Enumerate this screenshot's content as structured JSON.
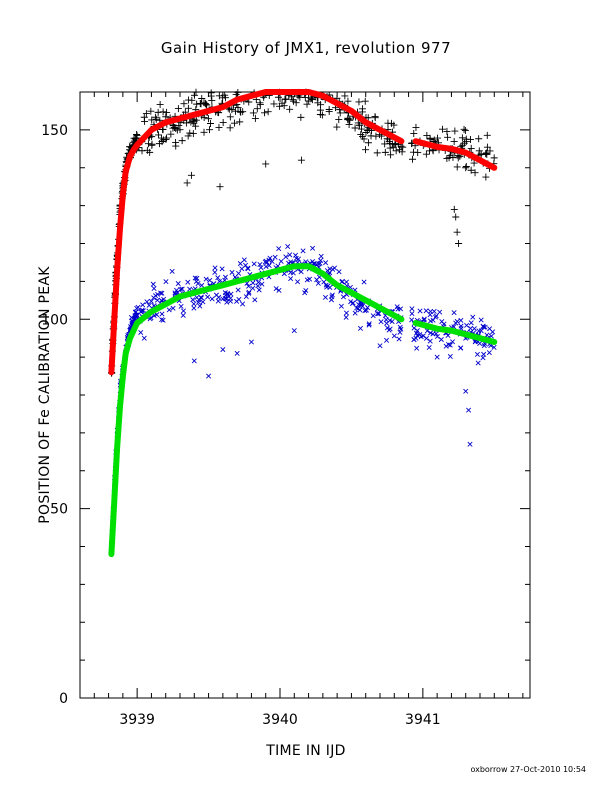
{
  "chart_data": {
    "type": "scatter",
    "title": "Gain History of JMX1, revolution 977",
    "xlabel": "TIME IN IJD",
    "ylabel": "POSITION OF Fe CALIBRATION PEAK",
    "footer": "oxborrow 27-Oct-2010 10:54",
    "xlim": [
      3938.6,
      3941.75
    ],
    "ylim": [
      0,
      160
    ],
    "x_ticks": [
      3939,
      3940,
      3941
    ],
    "x_tick_labels": [
      "3939",
      "3940",
      "3941"
    ],
    "y_ticks": [
      0,
      50,
      100,
      150
    ],
    "y_tick_labels": [
      "0",
      "50",
      "100",
      "150"
    ],
    "grid": false,
    "colors": {
      "upper_points": "#000000",
      "upper_fit": "#ff0000",
      "lower_points": "#0000cc",
      "lower_fit": "#00e000"
    },
    "series": [
      {
        "marker": "plus",
        "color": "#000000",
        "trend_x": [
          3938.82,
          3938.85,
          3938.88,
          3938.92,
          3938.96,
          3939.0,
          3939.1,
          3939.3,
          3939.5,
          3939.7,
          3939.9,
          3940.05,
          3940.2,
          3940.3,
          3940.4,
          3940.5,
          3940.6,
          3940.7,
          3940.8,
          3941.0,
          3941.2,
          3941.4,
          3941.5
        ],
        "trend_y": [
          86,
          110,
          128,
          140,
          145,
          147,
          150,
          153,
          155,
          157,
          160,
          160,
          160,
          159,
          157,
          154,
          151,
          149,
          147,
          146,
          145,
          143,
          141
        ],
        "outliers_x": [
          3939.35,
          3939.38,
          3939.58,
          3939.9,
          3940.15,
          3941.22,
          3941.23,
          3941.24,
          3941.25,
          3941.3,
          3941.35
        ],
        "outliers_y": [
          136,
          138,
          135,
          141,
          142,
          129,
          127,
          123,
          120,
          140,
          143
        ]
      },
      {
        "marker": "line",
        "color": "#ff0000",
        "x": [
          3938.82,
          3938.84,
          3938.86,
          3938.88,
          3938.9,
          3938.92,
          3938.95,
          3938.98,
          3939.0,
          3939.05,
          3939.1,
          3939.2,
          3939.3,
          3939.4,
          3939.5,
          3939.6,
          3939.7,
          3939.8,
          3939.9,
          3940.0,
          3940.1,
          3940.2,
          3940.3,
          3940.4,
          3940.5,
          3940.6,
          3940.7,
          3940.8,
          3940.85
        ],
        "y": [
          86,
          100,
          113,
          124,
          133,
          139,
          143,
          145,
          146,
          148,
          150,
          152,
          153,
          154,
          155,
          156,
          158,
          159,
          160,
          160,
          160,
          160,
          159,
          157,
          155,
          152,
          150,
          148,
          147
        ]
      },
      {
        "marker": "line",
        "color": "#ff0000",
        "x": [
          3940.95,
          3941.0,
          3941.1,
          3941.2,
          3941.3,
          3941.4,
          3941.5
        ],
        "y": [
          147,
          146.5,
          145.5,
          145,
          144,
          142,
          140
        ]
      },
      {
        "marker": "cross",
        "color": "#0000cc",
        "trend_x": [
          3938.82,
          3938.85,
          3938.88,
          3938.92,
          3938.96,
          3939.0,
          3939.1,
          3939.3,
          3939.5,
          3939.7,
          3939.9,
          3940.05,
          3940.2,
          3940.3,
          3940.4,
          3940.5,
          3940.6,
          3940.7,
          3940.8,
          3941.0,
          3941.2,
          3941.4,
          3941.5
        ],
        "trend_y": [
          40,
          62,
          80,
          92,
          98,
          101,
          104,
          106,
          108,
          110,
          112,
          115,
          114,
          112,
          109,
          106,
          103,
          101,
          99,
          98,
          97,
          95,
          94
        ],
        "outliers_x": [
          3939.05,
          3939.4,
          3939.5,
          3939.6,
          3939.7,
          3939.8,
          3940.1,
          3940.7,
          3941.1,
          3941.3,
          3941.32,
          3941.33
        ],
        "outliers_y": [
          95,
          89,
          85,
          92,
          91,
          94,
          97,
          93,
          90,
          81,
          76,
          67
        ]
      },
      {
        "marker": "line",
        "color": "#00e000",
        "x": [
          3938.82,
          3938.84,
          3938.86,
          3938.88,
          3938.9,
          3938.92,
          3938.95,
          3939.0,
          3939.1,
          3939.2,
          3939.3,
          3939.4,
          3939.5,
          3939.6,
          3939.7,
          3939.8,
          3939.9,
          3940.0,
          3940.1,
          3940.2,
          3940.3,
          3940.4,
          3940.5,
          3940.6,
          3940.7,
          3940.8,
          3940.85
        ],
        "y": [
          38,
          52,
          66,
          77,
          85,
          91,
          95,
          99,
          102,
          104,
          106,
          107,
          108,
          109,
          110,
          111,
          112,
          113,
          114,
          114,
          112,
          109,
          107,
          105,
          103,
          101,
          100
        ]
      },
      {
        "marker": "line",
        "color": "#00e000",
        "x": [
          3940.95,
          3941.0,
          3941.1,
          3941.2,
          3941.3,
          3941.4,
          3941.5
        ],
        "y": [
          99,
          98.5,
          97.5,
          97,
          96,
          95,
          94
        ]
      }
    ]
  }
}
